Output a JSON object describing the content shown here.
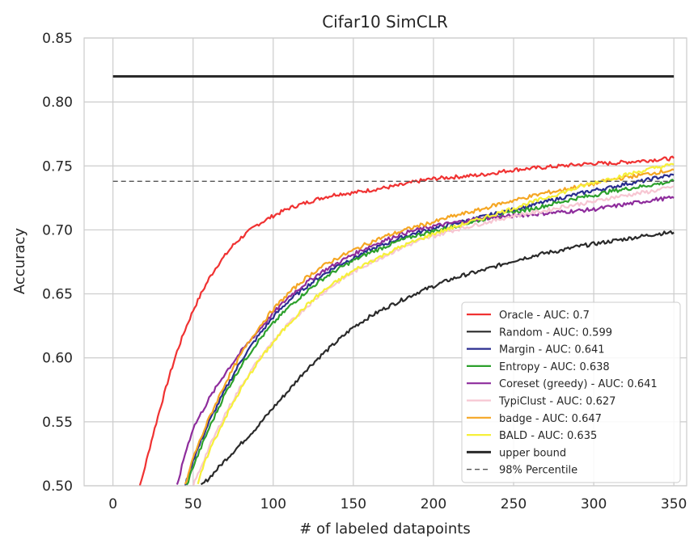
{
  "chart_data": {
    "type": "line",
    "title": "Cifar10 SimCLR",
    "xlabel": "# of labeled datapoints",
    "ylabel": "Accuracy",
    "xlim": [
      -18,
      358
    ],
    "ylim": [
      0.5,
      0.85
    ],
    "xticks": [
      0,
      50,
      100,
      150,
      200,
      250,
      300,
      350
    ],
    "yticks": [
      0.5,
      0.55,
      0.6,
      0.65,
      0.7,
      0.75,
      0.8,
      0.85
    ],
    "xtick_labels": [
      "0",
      "50",
      "100",
      "150",
      "200",
      "250",
      "300",
      "350"
    ],
    "ytick_labels": [
      "0.50",
      "0.55",
      "0.60",
      "0.65",
      "0.70",
      "0.75",
      "0.80",
      "0.85"
    ],
    "grid": true,
    "legend_position": "lower-right",
    "series": [
      {
        "name": "Oracle - AUC: 0.7",
        "color": "#f03232",
        "width": 2.2,
        "x": [
          10,
          15,
          20,
          25,
          30,
          35,
          40,
          45,
          50,
          55,
          60,
          65,
          70,
          75,
          80,
          85,
          90,
          100,
          110,
          120,
          130,
          140,
          150,
          160,
          170,
          180,
          190,
          200,
          210,
          220,
          230,
          240,
          250,
          260,
          270,
          280,
          290,
          300,
          310,
          320,
          330,
          340,
          350
        ],
        "y": [
          0.46,
          0.49,
          0.515,
          0.54,
          0.563,
          0.585,
          0.605,
          0.622,
          0.637,
          0.65,
          0.662,
          0.672,
          0.68,
          0.688,
          0.694,
          0.699,
          0.704,
          0.711,
          0.717,
          0.721,
          0.725,
          0.728,
          0.729,
          0.731,
          0.733,
          0.735,
          0.738,
          0.74,
          0.741,
          0.742,
          0.743,
          0.745,
          0.747,
          0.748,
          0.749,
          0.75,
          0.751,
          0.752,
          0.752,
          0.753,
          0.754,
          0.755,
          0.756
        ]
      },
      {
        "name": "Random - AUC: 0.599",
        "color": "#2a2a2a",
        "width": 2.2,
        "x": [
          55,
          60,
          70,
          80,
          90,
          100,
          110,
          120,
          130,
          140,
          150,
          160,
          170,
          180,
          190,
          200,
          210,
          220,
          230,
          240,
          250,
          260,
          270,
          280,
          290,
          300,
          310,
          320,
          330,
          340,
          350
        ],
        "y": [
          0.5,
          0.506,
          0.52,
          0.533,
          0.546,
          0.561,
          0.575,
          0.59,
          0.602,
          0.613,
          0.624,
          0.632,
          0.639,
          0.645,
          0.651,
          0.656,
          0.661,
          0.665,
          0.668,
          0.672,
          0.676,
          0.679,
          0.682,
          0.684,
          0.687,
          0.689,
          0.691,
          0.693,
          0.695,
          0.697,
          0.698
        ]
      },
      {
        "name": "Margin - AUC: 0.641",
        "color": "#2a2d8f",
        "width": 2.2,
        "x": [
          45,
          50,
          60,
          70,
          80,
          90,
          100,
          110,
          120,
          130,
          140,
          150,
          160,
          170,
          180,
          190,
          200,
          210,
          220,
          230,
          240,
          250,
          260,
          270,
          280,
          290,
          300,
          310,
          320,
          330,
          340,
          350
        ],
        "y": [
          0.5,
          0.52,
          0.55,
          0.575,
          0.598,
          0.616,
          0.632,
          0.645,
          0.655,
          0.664,
          0.672,
          0.678,
          0.684,
          0.689,
          0.694,
          0.698,
          0.701,
          0.704,
          0.707,
          0.71,
          0.713,
          0.716,
          0.719,
          0.722,
          0.725,
          0.728,
          0.731,
          0.733,
          0.736,
          0.738,
          0.741,
          0.743
        ]
      },
      {
        "name": "Entropy - AUC: 0.638",
        "color": "#2ca02c",
        "width": 2.2,
        "x": [
          46,
          50,
          60,
          70,
          80,
          90,
          100,
          110,
          120,
          130,
          140,
          150,
          160,
          170,
          180,
          190,
          200,
          210,
          220,
          230,
          240,
          250,
          260,
          270,
          280,
          290,
          300,
          310,
          320,
          330,
          340,
          350
        ],
        "y": [
          0.5,
          0.515,
          0.545,
          0.572,
          0.594,
          0.612,
          0.627,
          0.64,
          0.651,
          0.661,
          0.669,
          0.676,
          0.682,
          0.687,
          0.692,
          0.696,
          0.699,
          0.702,
          0.705,
          0.708,
          0.711,
          0.714,
          0.716,
          0.719,
          0.722,
          0.725,
          0.727,
          0.73,
          0.732,
          0.734,
          0.736,
          0.738
        ]
      },
      {
        "name": "Coreset (greedy) - AUC: 0.641",
        "color": "#8e2c9c",
        "width": 2.2,
        "x": [
          40,
          45,
          50,
          60,
          70,
          80,
          90,
          100,
          110,
          120,
          130,
          140,
          150,
          160,
          170,
          180,
          190,
          200,
          210,
          220,
          230,
          240,
          250,
          260,
          270,
          280,
          290,
          300,
          310,
          320,
          330,
          340,
          350
        ],
        "y": [
          0.5,
          0.525,
          0.545,
          0.568,
          0.588,
          0.605,
          0.62,
          0.635,
          0.648,
          0.658,
          0.667,
          0.674,
          0.681,
          0.687,
          0.692,
          0.697,
          0.7,
          0.703,
          0.705,
          0.707,
          0.709,
          0.71,
          0.711,
          0.712,
          0.713,
          0.714,
          0.715,
          0.716,
          0.718,
          0.72,
          0.722,
          0.724,
          0.725
        ]
      },
      {
        "name": "TypiClust - AUC: 0.627",
        "color": "#f7c6d2",
        "width": 2.2,
        "x": [
          50,
          55,
          60,
          70,
          80,
          90,
          100,
          110,
          120,
          130,
          140,
          150,
          160,
          170,
          180,
          190,
          200,
          210,
          220,
          230,
          240,
          250,
          260,
          270,
          280,
          290,
          300,
          310,
          320,
          330,
          340,
          350
        ],
        "y": [
          0.5,
          0.515,
          0.53,
          0.556,
          0.578,
          0.597,
          0.613,
          0.627,
          0.639,
          0.65,
          0.659,
          0.667,
          0.674,
          0.68,
          0.686,
          0.691,
          0.695,
          0.699,
          0.702,
          0.705,
          0.708,
          0.711,
          0.713,
          0.715,
          0.718,
          0.72,
          0.722,
          0.725,
          0.727,
          0.729,
          0.731,
          0.734
        ]
      },
      {
        "name": "badge - AUC: 0.647",
        "color": "#f5a623",
        "width": 2.2,
        "x": [
          45,
          50,
          60,
          70,
          80,
          90,
          100,
          110,
          120,
          130,
          140,
          150,
          160,
          170,
          180,
          190,
          200,
          210,
          220,
          230,
          240,
          250,
          260,
          270,
          280,
          290,
          300,
          310,
          320,
          330,
          340,
          350
        ],
        "y": [
          0.5,
          0.522,
          0.553,
          0.58,
          0.603,
          0.622,
          0.638,
          0.651,
          0.662,
          0.671,
          0.678,
          0.684,
          0.69,
          0.695,
          0.699,
          0.703,
          0.706,
          0.71,
          0.713,
          0.716,
          0.72,
          0.723,
          0.726,
          0.729,
          0.731,
          0.734,
          0.736,
          0.739,
          0.741,
          0.743,
          0.745,
          0.747
        ]
      },
      {
        "name": "BALD - AUC: 0.635",
        "color": "#f6f03a",
        "width": 2.2,
        "x": [
          53,
          55,
          60,
          70,
          80,
          90,
          100,
          110,
          120,
          130,
          140,
          150,
          160,
          170,
          180,
          190,
          200,
          210,
          220,
          230,
          240,
          250,
          260,
          270,
          280,
          290,
          300,
          310,
          320,
          330,
          340,
          350
        ],
        "y": [
          0.5,
          0.51,
          0.527,
          0.553,
          0.576,
          0.596,
          0.612,
          0.627,
          0.64,
          0.651,
          0.66,
          0.668,
          0.675,
          0.681,
          0.687,
          0.692,
          0.697,
          0.701,
          0.705,
          0.709,
          0.713,
          0.717,
          0.721,
          0.725,
          0.729,
          0.733,
          0.737,
          0.74,
          0.743,
          0.746,
          0.749,
          0.751
        ]
      },
      {
        "name": "upper bound",
        "color": "#2a2a2a",
        "width": 3,
        "x": [
          0,
          350
        ],
        "y": [
          0.82,
          0.82
        ]
      },
      {
        "name": "98% Percentile",
        "color": "#555555",
        "width": 1.4,
        "dash": "6,4",
        "x": [
          0,
          350
        ],
        "y": [
          0.738,
          0.738
        ]
      }
    ]
  }
}
